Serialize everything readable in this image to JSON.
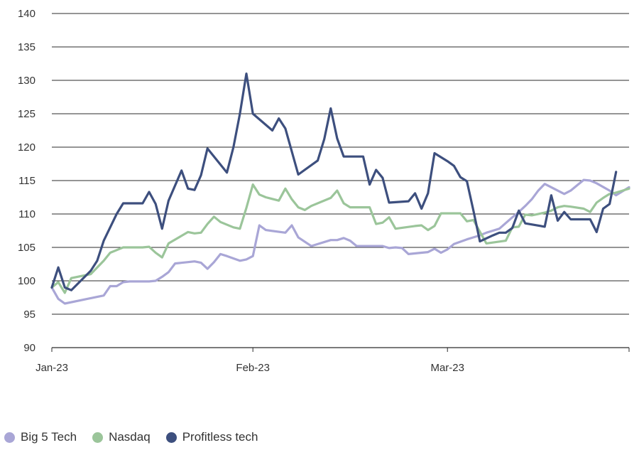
{
  "chart_data": {
    "type": "line",
    "title": "",
    "xlabel": "",
    "ylabel": "",
    "ylim": [
      90,
      140
    ],
    "yticks": [
      90,
      95,
      100,
      105,
      110,
      115,
      120,
      125,
      130,
      135,
      140
    ],
    "xlim": [
      "2023-01-01",
      "2023-03-31"
    ],
    "xticks": [
      {
        "date": "2023-01-01",
        "label": "Jan-23"
      },
      {
        "date": "2023-02-01",
        "label": "Feb-23"
      },
      {
        "date": "2023-03-03",
        "label": "Mar-23"
      }
    ],
    "grid": "horizontal",
    "legend_position": "bottom-left",
    "series": [
      {
        "name": "Big 5 Tech",
        "color": "#a9a6d6",
        "points": [
          [
            "2023-01-01",
            99.0
          ],
          [
            "2023-01-02",
            97.3
          ],
          [
            "2023-01-03",
            96.6
          ],
          [
            "2023-01-06",
            97.2
          ],
          [
            "2023-01-08",
            97.6
          ],
          [
            "2023-01-09",
            97.8
          ],
          [
            "2023-01-10",
            99.2
          ],
          [
            "2023-01-11",
            99.2
          ],
          [
            "2023-01-12",
            99.8
          ],
          [
            "2023-01-13",
            99.9
          ],
          [
            "2023-01-15",
            99.9
          ],
          [
            "2023-01-16",
            99.9
          ],
          [
            "2023-01-17",
            100.0
          ],
          [
            "2023-01-18",
            100.6
          ],
          [
            "2023-01-19",
            101.3
          ],
          [
            "2023-01-20",
            102.6
          ],
          [
            "2023-01-22",
            102.8
          ],
          [
            "2023-01-23",
            102.9
          ],
          [
            "2023-01-24",
            102.7
          ],
          [
            "2023-01-25",
            101.8
          ],
          [
            "2023-01-26",
            102.8
          ],
          [
            "2023-01-27",
            104.0
          ],
          [
            "2023-01-28",
            103.7
          ],
          [
            "2023-01-30",
            103.0
          ],
          [
            "2023-01-31",
            103.2
          ],
          [
            "2023-02-01",
            103.7
          ],
          [
            "2023-02-02",
            108.3
          ],
          [
            "2023-02-03",
            107.6
          ],
          [
            "2023-02-06",
            107.2
          ],
          [
            "2023-02-07",
            108.3
          ],
          [
            "2023-02-08",
            106.5
          ],
          [
            "2023-02-10",
            105.2
          ],
          [
            "2023-02-13",
            106.1
          ],
          [
            "2023-02-14",
            106.1
          ],
          [
            "2023-02-15",
            106.4
          ],
          [
            "2023-02-16",
            106.0
          ],
          [
            "2023-02-17",
            105.2
          ],
          [
            "2023-02-20",
            105.2
          ],
          [
            "2023-02-21",
            105.2
          ],
          [
            "2023-02-22",
            104.9
          ],
          [
            "2023-02-23",
            105.0
          ],
          [
            "2023-02-24",
            104.9
          ],
          [
            "2023-02-25",
            104.0
          ],
          [
            "2023-02-27",
            104.2
          ],
          [
            "2023-02-28",
            104.3
          ],
          [
            "2023-03-01",
            104.8
          ],
          [
            "2023-03-02",
            104.2
          ],
          [
            "2023-03-03",
            104.7
          ],
          [
            "2023-03-04",
            105.5
          ],
          [
            "2023-03-06",
            106.2
          ],
          [
            "2023-03-07",
            106.5
          ],
          [
            "2023-03-08",
            106.8
          ],
          [
            "2023-03-09",
            107.2
          ],
          [
            "2023-03-10",
            107.5
          ],
          [
            "2023-03-11",
            107.8
          ],
          [
            "2023-03-13",
            109.5
          ],
          [
            "2023-03-14",
            110.3
          ],
          [
            "2023-03-15",
            111.2
          ],
          [
            "2023-03-16",
            112.2
          ],
          [
            "2023-03-17",
            113.5
          ],
          [
            "2023-03-18",
            114.5
          ],
          [
            "2023-03-20",
            113.5
          ],
          [
            "2023-03-21",
            113.0
          ],
          [
            "2023-03-22",
            113.5
          ],
          [
            "2023-03-23",
            114.3
          ],
          [
            "2023-03-24",
            115.1
          ],
          [
            "2023-03-25",
            115.0
          ],
          [
            "2023-03-26",
            114.6
          ],
          [
            "2023-03-28",
            113.5
          ],
          [
            "2023-03-29",
            112.8
          ],
          [
            "2023-03-30",
            113.4
          ],
          [
            "2023-03-31",
            114.0
          ]
        ]
      },
      {
        "name": "Nasdaq",
        "color": "#9bc59a",
        "points": [
          [
            "2023-01-01",
            99.0
          ],
          [
            "2023-01-02",
            99.8
          ],
          [
            "2023-01-03",
            98.2
          ],
          [
            "2023-01-04",
            100.4
          ],
          [
            "2023-01-07",
            101.0
          ],
          [
            "2023-01-08",
            102.0
          ],
          [
            "2023-01-09",
            103.0
          ],
          [
            "2023-01-10",
            104.2
          ],
          [
            "2023-01-11",
            104.6
          ],
          [
            "2023-01-12",
            105.0
          ],
          [
            "2023-01-13",
            105.0
          ],
          [
            "2023-01-15",
            105.0
          ],
          [
            "2023-01-16",
            105.1
          ],
          [
            "2023-01-17",
            104.2
          ],
          [
            "2023-01-18",
            103.5
          ],
          [
            "2023-01-19",
            105.6
          ],
          [
            "2023-01-22",
            107.3
          ],
          [
            "2023-01-23",
            107.1
          ],
          [
            "2023-01-24",
            107.2
          ],
          [
            "2023-01-25",
            108.5
          ],
          [
            "2023-01-26",
            109.6
          ],
          [
            "2023-01-27",
            108.8
          ],
          [
            "2023-01-29",
            108.0
          ],
          [
            "2023-01-30",
            107.8
          ],
          [
            "2023-01-31",
            110.9
          ],
          [
            "2023-02-01",
            114.4
          ],
          [
            "2023-02-02",
            112.9
          ],
          [
            "2023-02-03",
            112.5
          ],
          [
            "2023-02-05",
            112.0
          ],
          [
            "2023-02-06",
            113.8
          ],
          [
            "2023-02-07",
            112.2
          ],
          [
            "2023-02-08",
            111.0
          ],
          [
            "2023-02-09",
            110.6
          ],
          [
            "2023-02-10",
            111.2
          ],
          [
            "2023-02-13",
            112.4
          ],
          [
            "2023-02-14",
            113.5
          ],
          [
            "2023-02-15",
            111.6
          ],
          [
            "2023-02-16",
            111.0
          ],
          [
            "2023-02-18",
            111.0
          ],
          [
            "2023-02-19",
            111.0
          ],
          [
            "2023-02-20",
            108.5
          ],
          [
            "2023-02-21",
            108.7
          ],
          [
            "2023-02-22",
            109.5
          ],
          [
            "2023-02-23",
            107.8
          ],
          [
            "2023-02-26",
            108.2
          ],
          [
            "2023-02-27",
            108.3
          ],
          [
            "2023-02-28",
            107.6
          ],
          [
            "2023-03-01",
            108.2
          ],
          [
            "2023-03-02",
            110.1
          ],
          [
            "2023-03-04",
            110.1
          ],
          [
            "2023-03-05",
            110.1
          ],
          [
            "2023-03-06",
            108.9
          ],
          [
            "2023-03-07",
            109.1
          ],
          [
            "2023-03-09",
            105.6
          ],
          [
            "2023-03-12",
            106.0
          ],
          [
            "2023-03-13",
            108.0
          ],
          [
            "2023-03-14",
            108.1
          ],
          [
            "2023-03-15",
            109.9
          ],
          [
            "2023-03-16",
            109.8
          ],
          [
            "2023-03-18",
            110.2
          ],
          [
            "2023-03-19",
            110.5
          ],
          [
            "2023-03-20",
            111.0
          ],
          [
            "2023-03-21",
            111.2
          ],
          [
            "2023-03-22",
            111.1
          ],
          [
            "2023-03-24",
            110.8
          ],
          [
            "2023-03-25",
            110.3
          ],
          [
            "2023-03-26",
            111.7
          ],
          [
            "2023-03-27",
            112.4
          ],
          [
            "2023-03-28",
            113.0
          ],
          [
            "2023-03-29",
            113.2
          ],
          [
            "2023-03-30",
            113.5
          ],
          [
            "2023-03-31",
            113.8
          ]
        ]
      },
      {
        "name": "Profitless tech",
        "color": "#3d4f7e",
        "points": [
          [
            "2023-01-01",
            99.0
          ],
          [
            "2023-01-02",
            102.0
          ],
          [
            "2023-01-03",
            99.0
          ],
          [
            "2023-01-04",
            98.6
          ],
          [
            "2023-01-07",
            101.5
          ],
          [
            "2023-01-08",
            103.0
          ],
          [
            "2023-01-09",
            106.0
          ],
          [
            "2023-01-10",
            108.0
          ],
          [
            "2023-01-11",
            110.0
          ],
          [
            "2023-01-12",
            111.6
          ],
          [
            "2023-01-14",
            111.6
          ],
          [
            "2023-01-15",
            111.6
          ],
          [
            "2023-01-16",
            113.3
          ],
          [
            "2023-01-17",
            111.5
          ],
          [
            "2023-01-18",
            107.8
          ],
          [
            "2023-01-19",
            112.0
          ],
          [
            "2023-01-21",
            116.5
          ],
          [
            "2023-01-22",
            113.8
          ],
          [
            "2023-01-23",
            113.6
          ],
          [
            "2023-01-24",
            115.8
          ],
          [
            "2023-01-25",
            119.8
          ],
          [
            "2023-01-28",
            116.2
          ],
          [
            "2023-01-29",
            120.0
          ],
          [
            "2023-01-30",
            125.0
          ],
          [
            "2023-01-31",
            131.0
          ],
          [
            "2023-02-01",
            125.0
          ],
          [
            "2023-02-04",
            122.5
          ],
          [
            "2023-02-05",
            124.3
          ],
          [
            "2023-02-06",
            122.8
          ],
          [
            "2023-02-08",
            115.9
          ],
          [
            "2023-02-11",
            118.0
          ],
          [
            "2023-02-12",
            121.2
          ],
          [
            "2023-02-13",
            125.8
          ],
          [
            "2023-02-14",
            121.3
          ],
          [
            "2023-02-15",
            118.6
          ],
          [
            "2023-02-18",
            118.6
          ],
          [
            "2023-02-19",
            114.4
          ],
          [
            "2023-02-20",
            116.6
          ],
          [
            "2023-02-21",
            115.4
          ],
          [
            "2023-02-22",
            111.7
          ],
          [
            "2023-02-25",
            111.9
          ],
          [
            "2023-02-26",
            113.1
          ],
          [
            "2023-02-27",
            110.8
          ],
          [
            "2023-02-28",
            113.1
          ],
          [
            "2023-03-01",
            119.1
          ],
          [
            "2023-03-03",
            117.9
          ],
          [
            "2023-03-04",
            117.2
          ],
          [
            "2023-03-05",
            115.5
          ],
          [
            "2023-03-06",
            114.9
          ],
          [
            "2023-03-07",
            110.5
          ],
          [
            "2023-03-08",
            105.9
          ],
          [
            "2023-03-10",
            106.8
          ],
          [
            "2023-03-11",
            107.2
          ],
          [
            "2023-03-12",
            107.2
          ],
          [
            "2023-03-13",
            107.9
          ],
          [
            "2023-03-14",
            110.5
          ],
          [
            "2023-03-15",
            108.6
          ],
          [
            "2023-03-18",
            108.1
          ],
          [
            "2023-03-19",
            112.8
          ],
          [
            "2023-03-20",
            109.0
          ],
          [
            "2023-03-21",
            110.3
          ],
          [
            "2023-03-22",
            109.2
          ],
          [
            "2023-03-25",
            109.2
          ],
          [
            "2023-03-26",
            107.3
          ],
          [
            "2023-03-27",
            110.8
          ],
          [
            "2023-03-28",
            111.5
          ],
          [
            "2023-03-29",
            116.3
          ]
        ]
      }
    ]
  }
}
